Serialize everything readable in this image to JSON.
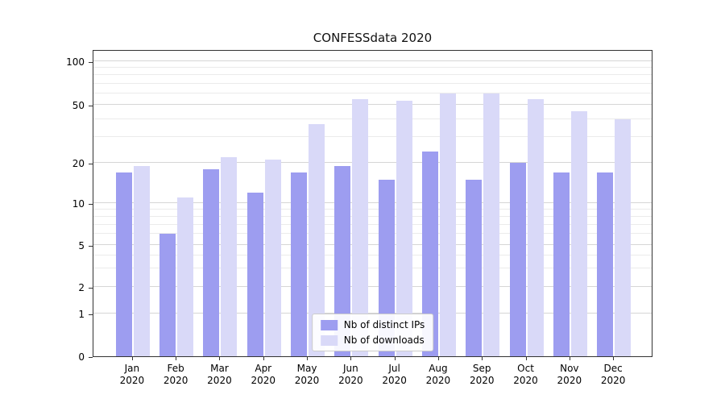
{
  "chart_data": {
    "type": "bar",
    "title": "CONFESSdata 2020",
    "yscale": "symlog",
    "grid": "major+minor horizontal",
    "ylim": [
      0,
      110
    ],
    "yticks": [
      0,
      1,
      2,
      5,
      10,
      20,
      50,
      100
    ],
    "categories": [
      "Jan",
      "Feb",
      "Mar",
      "Apr",
      "May",
      "Jun",
      "Jul",
      "Aug",
      "Sep",
      "Oct",
      "Nov",
      "Dec"
    ],
    "category_year": "2020",
    "series": [
      {
        "name": "Nb of distinct IPs",
        "color": "#9d9df0",
        "values": [
          17,
          6,
          18,
          12,
          17,
          19,
          15,
          24,
          15,
          20,
          17,
          17
        ]
      },
      {
        "name": "Nb of downloads",
        "color": "#d9d9f8",
        "values": [
          19,
          11,
          22,
          21,
          37,
          55,
          53,
          60,
          60,
          55,
          45,
          40
        ]
      }
    ],
    "legend_position": "lower center"
  }
}
